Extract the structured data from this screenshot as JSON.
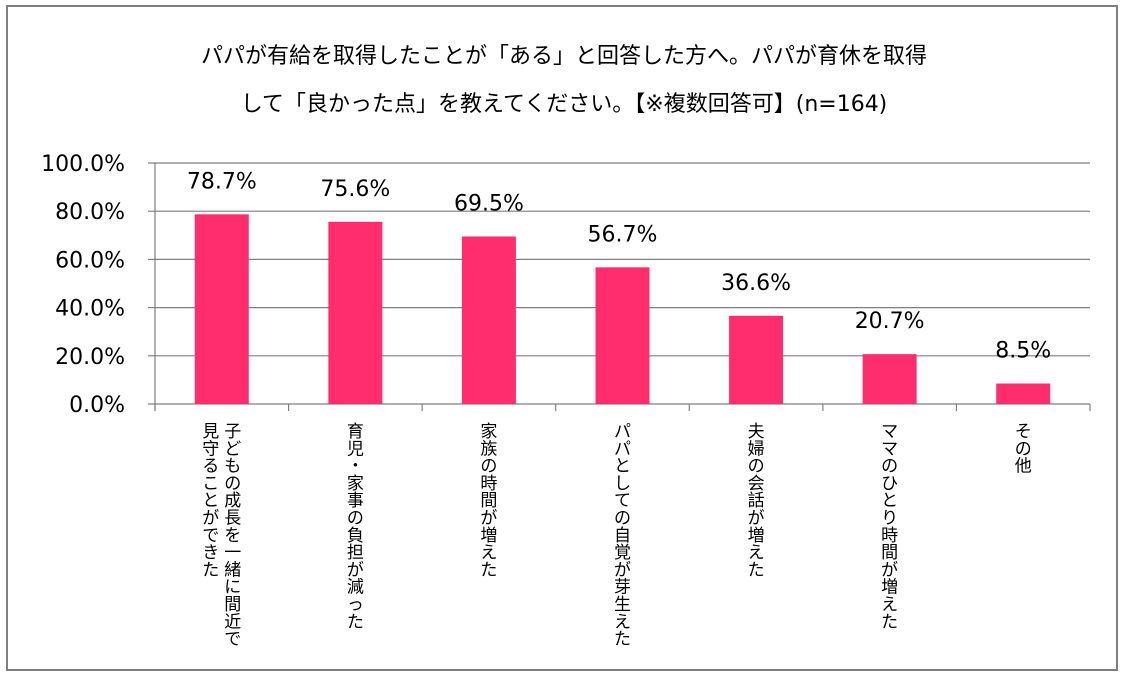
{
  "chart_data": {
    "type": "bar",
    "title_line1": "パパが有給を取得したことが「ある」と回答した方へ。パパが育休を取得",
    "title_line2": "して「良かった点」を教えてください。【※複数回答可】(n=164)",
    "categories": [
      [
        "子どもの成長を一緒に間近で",
        "見守ることができた"
      ],
      [
        "育児・家事の負担が減った"
      ],
      [
        "家族の時間が増えた"
      ],
      [
        "パパとしての自覚が芽生えた"
      ],
      [
        "夫婦の会話が増えた"
      ],
      [
        "ママのひとり時間が増えた"
      ],
      [
        "その他"
      ]
    ],
    "values": [
      78.7,
      75.6,
      69.5,
      56.7,
      36.6,
      20.7,
      8.5
    ],
    "value_labels": [
      "78.7%",
      "75.6%",
      "69.5%",
      "56.7%",
      "36.6%",
      "20.7%",
      "8.5%"
    ],
    "y_ticks": [
      "100.0%",
      "80.0%",
      "60.0%",
      "40.0%",
      "20.0%",
      "0.0%"
    ],
    "y_tick_values": [
      100,
      80,
      60,
      40,
      20,
      0
    ],
    "ylim": [
      0,
      100
    ],
    "xlabel": "",
    "ylabel": "",
    "grid": true,
    "bar_color": "#ff2d6e",
    "grid_color": "#7f7f7f"
  }
}
